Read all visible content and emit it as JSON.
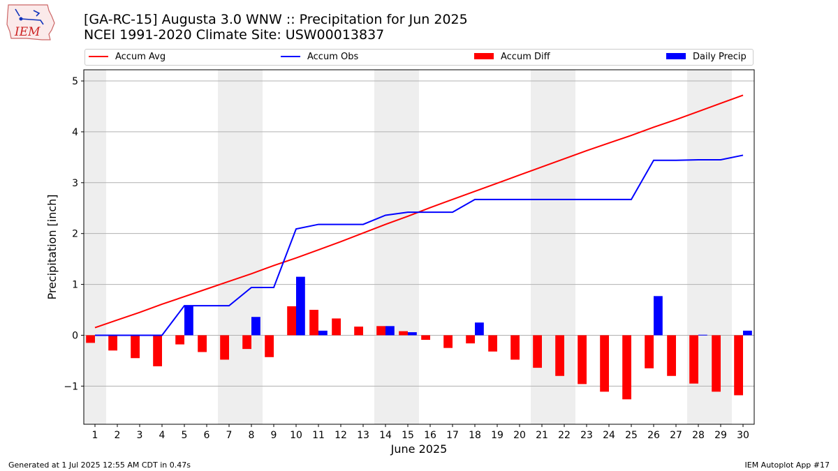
{
  "logo": {
    "text": "IEM"
  },
  "header": {
    "title_line1": "[GA-RC-15] Augusta 3.0 WNW :: Precipitation for Jun 2025",
    "title_line2": "NCEI 1991-2020 Climate Site: USW00013837"
  },
  "legend": {
    "accum_avg": "Accum Avg",
    "accum_obs": "Accum Obs",
    "accum_diff": "Accum Diff",
    "daily_precip": "Daily Precip"
  },
  "colors": {
    "avg": "#ff0000",
    "obs": "#0000ff",
    "diff": "#ff0000",
    "daily": "#0000ff",
    "weekend": "#eeeeee",
    "grid": "#b0b0b0"
  },
  "footer": {
    "generated": "Generated at 1 Jul 2025 12:55 AM CDT in 0.47s",
    "app": "IEM Autoplot App #17"
  },
  "chart_data": {
    "type": "bar",
    "xlabel": "June 2025",
    "ylabel": "Precipitation [inch]",
    "ylim": [
      -1.75,
      5.22
    ],
    "yticks": [
      -1,
      0,
      1,
      2,
      3,
      4,
      5
    ],
    "days": [
      1,
      2,
      3,
      4,
      5,
      6,
      7,
      8,
      9,
      10,
      11,
      12,
      13,
      14,
      15,
      16,
      17,
      18,
      19,
      20,
      21,
      22,
      23,
      24,
      25,
      26,
      27,
      28,
      29,
      30
    ],
    "weekend_days": [
      1,
      7,
      8,
      14,
      15,
      21,
      22,
      28,
      29
    ],
    "grid": true,
    "legend_position": "top",
    "series": [
      {
        "name": "Accum Avg",
        "kind": "line",
        "values": [
          0.15,
          0.3,
          0.45,
          0.61,
          0.76,
          0.91,
          1.06,
          1.21,
          1.37,
          1.52,
          1.68,
          1.84,
          2.01,
          2.18,
          2.34,
          2.51,
          2.67,
          2.83,
          2.99,
          3.15,
          3.31,
          3.47,
          3.63,
          3.78,
          3.93,
          4.09,
          4.24,
          4.4,
          4.56,
          4.72
        ]
      },
      {
        "name": "Accum Obs",
        "kind": "line",
        "values": [
          0,
          0,
          0,
          0,
          0.58,
          0.58,
          0.58,
          0.94,
          0.94,
          2.09,
          2.18,
          2.18,
          2.18,
          2.36,
          2.42,
          2.42,
          2.42,
          2.67,
          2.67,
          2.67,
          2.67,
          2.67,
          2.67,
          2.67,
          2.67,
          3.44,
          3.44,
          3.45,
          3.45,
          3.54
        ]
      },
      {
        "name": "Accum Diff",
        "kind": "bar",
        "values": [
          -0.15,
          -0.3,
          -0.45,
          -0.61,
          -0.18,
          -0.33,
          -0.48,
          -0.27,
          -0.43,
          0.57,
          0.5,
          0.33,
          0.17,
          0.18,
          0.08,
          -0.09,
          -0.25,
          -0.16,
          -0.32,
          -0.48,
          -0.64,
          -0.8,
          -0.96,
          -1.11,
          -1.26,
          -0.65,
          -0.8,
          -0.95,
          -1.11,
          -1.18
        ]
      },
      {
        "name": "Daily Precip",
        "kind": "bar",
        "values": [
          0,
          0,
          0,
          0,
          0.58,
          0,
          0,
          0.36,
          0,
          1.15,
          0.09,
          0,
          0,
          0.18,
          0.06,
          0,
          0,
          0.25,
          0,
          0,
          0,
          0,
          0,
          0,
          0,
          0.77,
          0,
          0.01,
          0,
          0.09
        ]
      }
    ]
  }
}
